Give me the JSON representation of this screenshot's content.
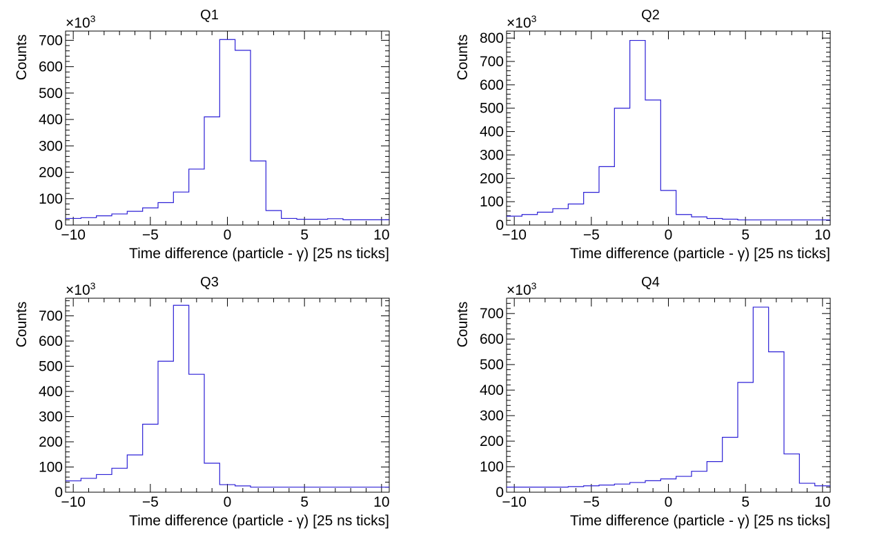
{
  "chart_data": [
    {
      "type": "line",
      "title": "Q1",
      "xlabel": "Time difference (particle - γ) [25 ns ticks]",
      "ylabel": "Counts",
      "multiplier": "×10",
      "multiplier_exp": "3",
      "xlim": [
        -10.5,
        10.5
      ],
      "ylim": [
        0,
        735
      ],
      "xticks": [
        -10,
        -5,
        0,
        5,
        10
      ],
      "xtick_labels": [
        "−10",
        "−5",
        "0",
        "5",
        "10"
      ],
      "yticks": [
        0,
        100,
        200,
        300,
        400,
        500,
        600,
        700
      ],
      "ytick_labels": [
        "0",
        "100",
        "200",
        "300",
        "400",
        "500",
        "600",
        "700"
      ],
      "bin_edges": [
        -10.5,
        -9.5,
        -8.5,
        -7.5,
        -6.5,
        -5.5,
        -4.5,
        -3.5,
        -2.5,
        -1.5,
        -0.5,
        0.5,
        1.5,
        2.5,
        3.5,
        4.5,
        5.5,
        6.5,
        7.5,
        8.5,
        9.5,
        10.5
      ],
      "values": [
        25,
        28,
        35,
        42,
        52,
        65,
        85,
        125,
        212,
        410,
        703,
        662,
        243,
        55,
        25,
        22,
        22,
        24,
        20,
        20,
        20
      ],
      "color": "#2b1fd6"
    },
    {
      "type": "line",
      "title": "Q2",
      "xlabel": "Time difference (particle - γ) [25 ns ticks]",
      "ylabel": "Counts",
      "multiplier": "×10",
      "multiplier_exp": "3",
      "xlim": [
        -10.5,
        10.5
      ],
      "ylim": [
        0,
        830
      ],
      "xticks": [
        -10,
        -5,
        0,
        5,
        10
      ],
      "xtick_labels": [
        "−10",
        "−5",
        "0",
        "5",
        "10"
      ],
      "yticks": [
        0,
        100,
        200,
        300,
        400,
        500,
        600,
        700,
        800
      ],
      "ytick_labels": [
        "0",
        "100",
        "200",
        "300",
        "400",
        "500",
        "600",
        "700",
        "800"
      ],
      "bin_edges": [
        -10.5,
        -9.5,
        -8.5,
        -7.5,
        -6.5,
        -5.5,
        -4.5,
        -3.5,
        -2.5,
        -1.5,
        -0.5,
        0.5,
        1.5,
        2.5,
        3.5,
        4.5,
        5.5,
        6.5,
        7.5,
        8.5,
        9.5,
        10.5
      ],
      "values": [
        38,
        45,
        55,
        70,
        90,
        140,
        250,
        500,
        790,
        535,
        148,
        45,
        35,
        28,
        25,
        22,
        22,
        22,
        22,
        22,
        22
      ],
      "color": "#2b1fd6"
    },
    {
      "type": "line",
      "title": "Q3",
      "xlabel": "Time difference (particle - γ) [25 ns ticks]",
      "ylabel": "Counts",
      "multiplier": "×10",
      "multiplier_exp": "3",
      "xlim": [
        -10.5,
        10.5
      ],
      "ylim": [
        0,
        770
      ],
      "xticks": [
        -10,
        -5,
        0,
        5,
        10
      ],
      "xtick_labels": [
        "−10",
        "−5",
        "0",
        "5",
        "10"
      ],
      "yticks": [
        0,
        100,
        200,
        300,
        400,
        500,
        600,
        700
      ],
      "ytick_labels": [
        "0",
        "100",
        "200",
        "300",
        "400",
        "500",
        "600",
        "700"
      ],
      "bin_edges": [
        -10.5,
        -9.5,
        -8.5,
        -7.5,
        -6.5,
        -5.5,
        -4.5,
        -3.5,
        -2.5,
        -1.5,
        -0.5,
        0.5,
        1.5,
        2.5,
        3.5,
        4.5,
        5.5,
        6.5,
        7.5,
        8.5,
        9.5,
        10.5
      ],
      "values": [
        45,
        55,
        70,
        95,
        148,
        270,
        520,
        742,
        468,
        115,
        30,
        25,
        20,
        20,
        20,
        20,
        20,
        20,
        20,
        20,
        20
      ],
      "color": "#2b1fd6"
    },
    {
      "type": "line",
      "title": "Q4",
      "xlabel": "Time difference (particle - γ) [25 ns ticks]",
      "ylabel": "Counts",
      "multiplier": "×10",
      "multiplier_exp": "3",
      "xlim": [
        -10.5,
        10.5
      ],
      "ylim": [
        0,
        760
      ],
      "xticks": [
        -10,
        -5,
        0,
        5,
        10
      ],
      "xtick_labels": [
        "−10",
        "−5",
        "0",
        "5",
        "10"
      ],
      "yticks": [
        0,
        100,
        200,
        300,
        400,
        500,
        600,
        700
      ],
      "ytick_labels": [
        "0",
        "100",
        "200",
        "300",
        "400",
        "500",
        "600",
        "700"
      ],
      "bin_edges": [
        -10.5,
        -9.5,
        -8.5,
        -7.5,
        -6.5,
        -5.5,
        -4.5,
        -3.5,
        -2.5,
        -1.5,
        -0.5,
        0.5,
        1.5,
        2.5,
        3.5,
        4.5,
        5.5,
        6.5,
        7.5,
        8.5,
        9.5,
        10.5
      ],
      "values": [
        20,
        20,
        20,
        20,
        22,
        25,
        28,
        32,
        38,
        45,
        52,
        62,
        82,
        120,
        215,
        430,
        725,
        550,
        150,
        35,
        25
      ],
      "color": "#2b1fd6"
    }
  ]
}
